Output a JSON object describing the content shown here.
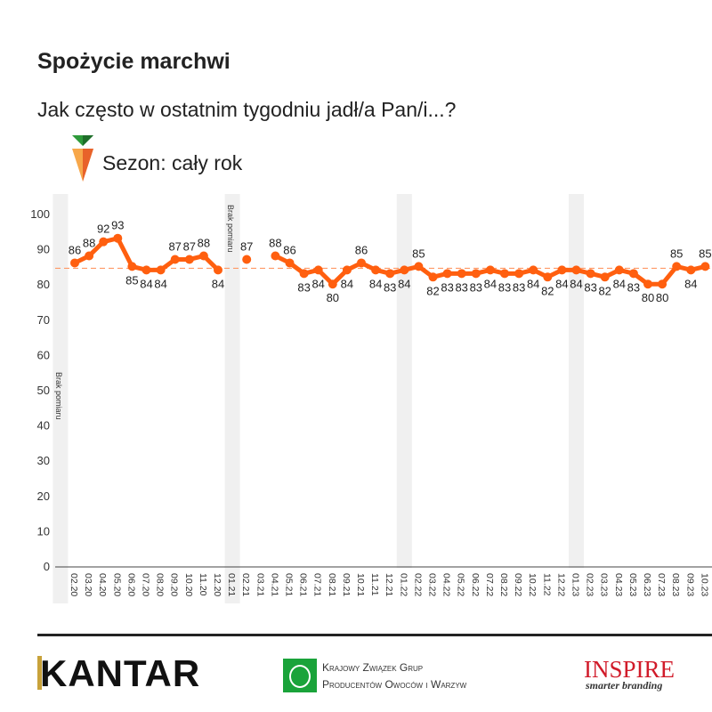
{
  "header": {
    "title": "Spożycie marchwi",
    "question": "Jak często w ostatnim tygodniu jadł/a Pan/i...?",
    "season": "Sezon: cały rok",
    "season_icon": "carrot-icon"
  },
  "chart_data": {
    "type": "line",
    "ylim": [
      0,
      100
    ],
    "yticks": [
      0,
      10,
      20,
      30,
      40,
      50,
      60,
      70,
      80,
      90,
      100
    ],
    "grid": false,
    "line_color": "#ff5f0f",
    "average_line_color": "#ff9966",
    "band_color": "#f0f0f0",
    "band_note": "Brak pomiaru",
    "categories": [
      "02.20",
      "03.20",
      "04.20",
      "05.20",
      "06.20",
      "07.20",
      "08.20",
      "09.20",
      "10.20",
      "11.20",
      "12.20",
      "01.21",
      "02.21",
      "03.21",
      "04.21",
      "05.21",
      "06.21",
      "07.21",
      "08.21",
      "09.21",
      "10.21",
      "11.21",
      "12.21",
      "01.22",
      "02.22",
      "03.22",
      "04.22",
      "05.22",
      "06.22",
      "07.22",
      "08.22",
      "09.22",
      "10.22",
      "11.22",
      "12.22",
      "01.23",
      "02.23",
      "03.23",
      "04.23",
      "05.23",
      "06.23",
      "07.23",
      "08.23",
      "09.23",
      "10.23"
    ],
    "values": [
      86,
      88,
      92,
      93,
      85,
      84,
      84,
      87,
      87,
      88,
      84,
      null,
      87,
      null,
      88,
      86,
      83,
      84,
      80,
      84,
      86,
      84,
      83,
      84,
      85,
      82,
      83,
      83,
      83,
      84,
      83,
      83,
      84,
      82,
      84,
      84,
      83,
      82,
      84,
      83,
      80,
      80,
      85,
      84,
      85
    ]
  },
  "footer": {
    "kantar": "KANTAR",
    "kzgpowiw_line1": "Krajowy Związek Grup",
    "kzgpowiw_line2": "Producentów Owoców i Warzyw",
    "inspire": "INSPIRE",
    "inspire_tagline": "smarter branding"
  }
}
